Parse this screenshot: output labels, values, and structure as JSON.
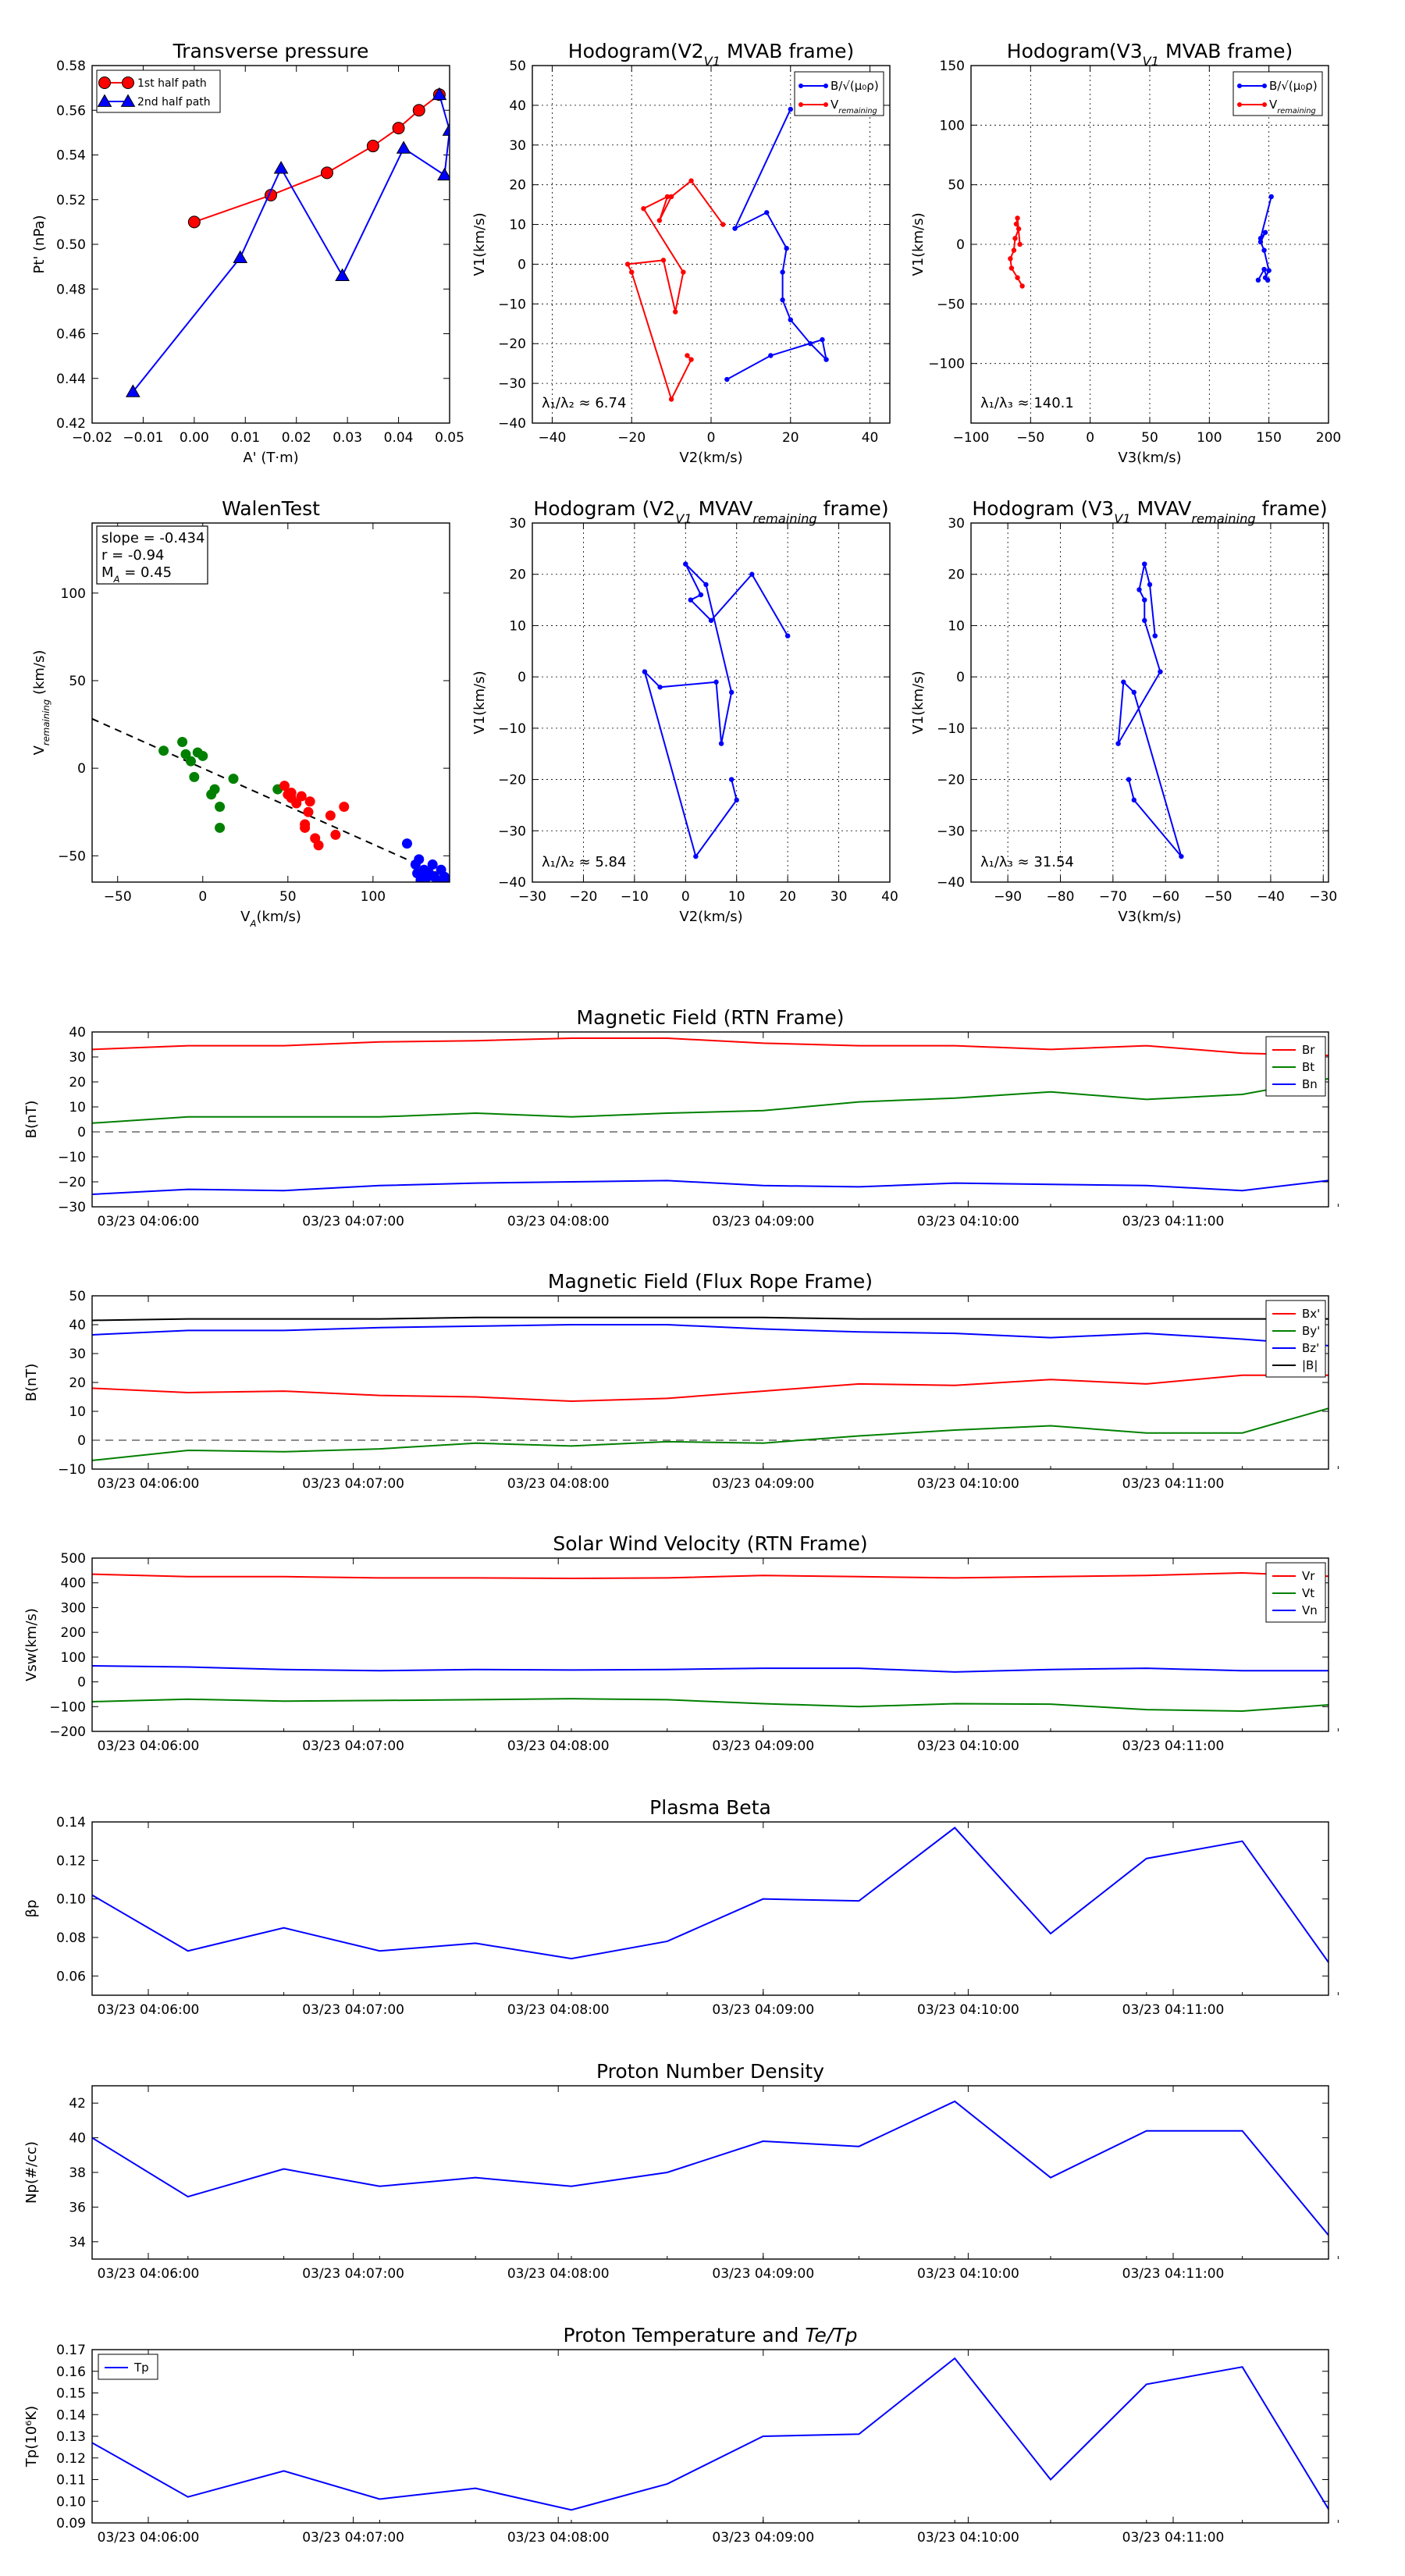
{
  "colors": {
    "red": "#ff0000",
    "green": "#008000",
    "blue": "#0000ff",
    "black": "#000000",
    "grid": "#000000"
  },
  "time_ticks": [
    "03/23 04:06:00",
    "03/23 04:07:00",
    "03/23 04:08:00",
    "03/23 04:09:00",
    "03/23 04:10:00",
    "03/23 04:11:00"
  ],
  "chart_data": [
    {
      "id": "transverse",
      "type": "line",
      "title": "Transverse pressure",
      "xlabel": "A' (T·m)",
      "ylabel": "Pt' (nPa)",
      "xlim": [
        -0.02,
        0.05
      ],
      "ylim": [
        0.42,
        0.58
      ],
      "xticks": [
        -0.02,
        -0.01,
        0.0,
        0.01,
        0.02,
        0.03,
        0.04,
        0.05
      ],
      "xtick_labels": [
        "−0.02",
        "−0.01",
        "0.00",
        "0.01",
        "0.02",
        "0.03",
        "0.04",
        "0.05"
      ],
      "yticks": [
        0.42,
        0.44,
        0.46,
        0.48,
        0.5,
        0.52,
        0.54,
        0.56,
        0.58
      ],
      "ytick_labels": [
        "0.42",
        "0.44",
        "0.46",
        "0.48",
        "0.50",
        "0.52",
        "0.54",
        "0.56",
        "0.58"
      ],
      "legend": [
        "1st half path",
        "2nd half path"
      ],
      "series": [
        {
          "name": "1st half path",
          "color": "red",
          "marker": "circle",
          "x": [
            0.0,
            0.015,
            0.026,
            0.035,
            0.04,
            0.044,
            0.048
          ],
          "y": [
            0.51,
            0.522,
            0.532,
            0.544,
            0.552,
            0.56,
            0.567
          ]
        },
        {
          "name": "2nd half path",
          "color": "blue",
          "marker": "triangle",
          "x": [
            0.048,
            0.05,
            0.049,
            0.041,
            0.029,
            0.017,
            0.009,
            -0.012
          ],
          "y": [
            0.567,
            0.551,
            0.531,
            0.543,
            0.486,
            0.534,
            0.494,
            0.434
          ]
        }
      ]
    },
    {
      "id": "hodo_v2v1_mvab",
      "type": "line",
      "title": "Hodogram(V2_V1 MVAB frame)",
      "xlabel": "V2(km/s)",
      "ylabel": "V1(km/s)",
      "xlim": [
        -45,
        45
      ],
      "ylim": [
        -40,
        50
      ],
      "xticks": [
        -40,
        -20,
        0,
        20,
        40
      ],
      "xtick_labels": [
        "−40",
        "−20",
        "0",
        "20",
        "40"
      ],
      "yticks": [
        -40,
        -30,
        -20,
        -10,
        0,
        10,
        20,
        30,
        40,
        50
      ],
      "ytick_labels": [
        "−40",
        "−30",
        "−20",
        "−10",
        "0",
        "10",
        "20",
        "30",
        "40",
        "50"
      ],
      "grid": true,
      "annotation": "λ₁/λ₂ ≈ 6.74",
      "legend": [
        "B/√(μ₀ρ)",
        "V_remaining"
      ],
      "series": [
        {
          "name": "B",
          "color": "blue",
          "marker": "dot",
          "x": [
            20,
            6,
            14,
            19,
            18,
            18,
            20,
            25,
            29,
            28,
            15,
            4
          ],
          "y": [
            39,
            9,
            13,
            4,
            -2,
            -9,
            -14,
            -20,
            -24,
            -19,
            -23,
            -29
          ]
        },
        {
          "name": "V",
          "color": "red",
          "marker": "dot",
          "x": [
            3,
            -5,
            -10,
            -13,
            -11,
            -17,
            -7,
            -9,
            -12,
            -21,
            -20,
            -10,
            -5,
            -6
          ],
          "y": [
            10,
            21,
            17,
            11,
            17,
            14,
            -2,
            -12,
            1,
            0,
            -2,
            -34,
            -24,
            -23
          ]
        }
      ]
    },
    {
      "id": "hodo_v3v1_mvab",
      "type": "line",
      "title": "Hodogram(V3_V1 MVAB frame)",
      "xlabel": "V3(km/s)",
      "ylabel": "V1(km/s)",
      "xlim": [
        -100,
        200
      ],
      "ylim": [
        -150,
        150
      ],
      "xticks": [
        -100,
        -50,
        0,
        50,
        100,
        150,
        200
      ],
      "xtick_labels": [
        "−100",
        "−50",
        "0",
        "50",
        "100",
        "150",
        "200"
      ],
      "yticks": [
        -100,
        -50,
        0,
        50,
        100,
        150
      ],
      "ytick_labels": [
        "−100",
        "−50",
        "0",
        "50",
        "100",
        "150"
      ],
      "grid": true,
      "annotation": "λ₁/λ₃ ≈ 140.1",
      "legend": [
        "B/√(μ₀ρ)",
        "V_remaining"
      ],
      "series": [
        {
          "name": "B",
          "color": "blue",
          "marker": "dot",
          "x": [
            152,
            143,
            147,
            143,
            146,
            150,
            147,
            149,
            146,
            141
          ],
          "y": [
            40,
            5,
            10,
            2,
            -5,
            -22,
            -28,
            -30,
            -21,
            -30
          ]
        },
        {
          "name": "V",
          "color": "red",
          "marker": "dot",
          "x": [
            -59,
            -61,
            -62,
            -60,
            -63,
            -64,
            -67,
            -66,
            -61,
            -57
          ],
          "y": [
            0,
            22,
            17,
            13,
            5,
            -5,
            -12,
            -20,
            -28,
            -35
          ]
        }
      ]
    },
    {
      "id": "walen",
      "type": "scatter",
      "title": "WalenTest",
      "xlabel": "V_A(km/s)",
      "ylabel": "V_remaining (km/s)",
      "xlim": [
        -65,
        145
      ],
      "ylim": [
        -65,
        140
      ],
      "xticks": [
        -50,
        0,
        50,
        100
      ],
      "xtick_labels": [
        "−50",
        "0",
        "50",
        "100"
      ],
      "yticks": [
        -50,
        0,
        50,
        100
      ],
      "ytick_labels": [
        "−50",
        "0",
        "50",
        "100"
      ],
      "textbox": [
        "slope = -0.434",
        "r = -0.94",
        "M_A = 0.45"
      ],
      "fit_line": {
        "slope": -0.434,
        "intercept": 0
      },
      "series": [
        {
          "name": "green",
          "color": "green",
          "x": [
            -23,
            -12,
            -10,
            -7,
            -3,
            0,
            -5,
            5,
            10,
            18,
            7,
            10,
            44
          ],
          "y": [
            10,
            15,
            8,
            4,
            9,
            7,
            -5,
            -15,
            -22,
            -6,
            -12,
            -34,
            -12
          ]
        },
        {
          "name": "red",
          "color": "red",
          "x": [
            48,
            50,
            52,
            52,
            55,
            58,
            60,
            62,
            66,
            68,
            75,
            78,
            83,
            60,
            63
          ],
          "y": [
            -10,
            -15,
            -17,
            -14,
            -20,
            -16,
            -32,
            -25,
            -40,
            -44,
            -27,
            -38,
            -22,
            -34,
            -19
          ]
        },
        {
          "name": "blue",
          "color": "blue",
          "x": [
            120,
            125,
            127,
            128,
            130,
            132,
            133,
            135,
            136,
            138,
            140,
            142,
            143,
            128,
            126
          ],
          "y": [
            -43,
            -55,
            -52,
            -60,
            -58,
            -62,
            -60,
            -55,
            -62,
            -64,
            -58,
            -62,
            -64,
            -64,
            -60
          ]
        }
      ]
    },
    {
      "id": "hodo_v2v1_mvav",
      "type": "line",
      "title": "Hodogram (V2_V1 MVAV_remaining frame)",
      "xlabel": "V2(km/s)",
      "ylabel": "V1(km/s)",
      "xlim": [
        -30,
        40
      ],
      "ylim": [
        -40,
        30
      ],
      "xticks": [
        -30,
        -20,
        -10,
        0,
        10,
        20,
        30,
        40
      ],
      "xtick_labels": [
        "−30",
        "−20",
        "−10",
        "0",
        "10",
        "20",
        "30",
        "40"
      ],
      "yticks": [
        -40,
        -30,
        -20,
        -10,
        0,
        10,
        20,
        30
      ],
      "ytick_labels": [
        "−40",
        "−30",
        "−20",
        "−10",
        "0",
        "10",
        "20",
        "30"
      ],
      "grid": true,
      "annotation": "λ₁/λ₂ ≈ 5.84",
      "series": [
        {
          "name": "V",
          "color": "blue",
          "marker": "dot",
          "x": [
            20,
            13,
            5,
            1,
            3,
            0,
            4,
            9,
            7,
            6,
            -5,
            -8,
            2,
            10,
            9
          ],
          "y": [
            8,
            20,
            11,
            15,
            16,
            22,
            18,
            -3,
            -13,
            -1,
            -2,
            1,
            -35,
            -24,
            -20
          ]
        }
      ]
    },
    {
      "id": "hodo_v3v1_mvav",
      "type": "line",
      "title": "Hodogram (V3_V1 MVAV_remaining frame)",
      "xlabel": "V3(km/s)",
      "ylabel": "V1(km/s)",
      "xlim": [
        -97,
        -29
      ],
      "ylim": [
        -40,
        30
      ],
      "xticks": [
        -90,
        -80,
        -70,
        -60,
        -50,
        -40,
        -30
      ],
      "xtick_labels": [
        "−90",
        "−80",
        "−70",
        "−60",
        "−50",
        "−40",
        "−30"
      ],
      "yticks": [
        -40,
        -30,
        -20,
        -10,
        0,
        10,
        20,
        30
      ],
      "ytick_labels": [
        "−40",
        "−30",
        "−20",
        "−10",
        "0",
        "10",
        "20",
        "30"
      ],
      "grid": true,
      "annotation": "λ₁/λ₃ ≈ 31.54",
      "series": [
        {
          "name": "V",
          "color": "blue",
          "marker": "dot",
          "x": [
            -62,
            -63,
            -64,
            -65,
            -64,
            -64,
            -61,
            -69,
            -68,
            -66,
            -57,
            -66,
            -67
          ],
          "y": [
            8,
            18,
            22,
            17,
            15,
            11,
            1,
            -13,
            -1,
            -3,
            -35,
            -24,
            -20
          ]
        }
      ]
    },
    {
      "id": "mag_rtn",
      "type": "line",
      "title": "Magnetic Field (RTN Frame)",
      "ylabel": "B(nT)",
      "ylim": [
        -30,
        40
      ],
      "yticks": [
        -30,
        -20,
        -10,
        0,
        10,
        20,
        30,
        40
      ],
      "ytick_labels": [
        "−30",
        "−20",
        "−10",
        "0",
        "10",
        "20",
        "30",
        "40"
      ],
      "zero_line": true,
      "legend": [
        "Br",
        "Bt",
        "Bn"
      ],
      "series": [
        {
          "name": "Br",
          "color": "red",
          "values": [
            33,
            34.5,
            34.5,
            36,
            36.5,
            37.5,
            37.5,
            35.5,
            34.5,
            34.5,
            33,
            34.5,
            31.5,
            30.5
          ]
        },
        {
          "name": "Bt",
          "color": "green",
          "values": [
            3.5,
            6,
            6,
            6,
            7.5,
            6,
            7.5,
            8.5,
            12,
            13.5,
            16,
            13,
            15,
            22
          ]
        },
        {
          "name": "Bn",
          "color": "blue",
          "values": [
            -25,
            -23,
            -23.5,
            -21.5,
            -20.5,
            -20,
            -19.5,
            -21.5,
            -22,
            -20.5,
            -21,
            -21.5,
            -23.5,
            -19
          ]
        }
      ]
    },
    {
      "id": "mag_fr",
      "type": "line",
      "title": "Magnetic Field (Flux Rope Frame)",
      "ylabel": "B(nT)",
      "ylim": [
        -10,
        50
      ],
      "yticks": [
        -10,
        0,
        10,
        20,
        30,
        40,
        50
      ],
      "ytick_labels": [
        "−10",
        "0",
        "10",
        "20",
        "30",
        "40",
        "50"
      ],
      "zero_line": true,
      "legend": [
        "Bx'",
        "By'",
        "Bz'",
        "|B|"
      ],
      "series": [
        {
          "name": "Bx'",
          "color": "red",
          "values": [
            18,
            16.5,
            17,
            15.5,
            15,
            13.5,
            14.5,
            17,
            19.5,
            19,
            21,
            19.5,
            22.5,
            22.5
          ]
        },
        {
          "name": "By'",
          "color": "green",
          "values": [
            -7,
            -3.5,
            -4,
            -3,
            -1,
            -2,
            -0.5,
            -1,
            1.5,
            3.5,
            5,
            2.5,
            2.5,
            12
          ]
        },
        {
          "name": "Bz'",
          "color": "blue",
          "values": [
            36.5,
            38,
            38,
            39,
            39.5,
            40,
            40,
            38.5,
            37.5,
            37,
            35.5,
            37,
            35,
            32.5
          ]
        },
        {
          "name": "|B|",
          "color": "black",
          "values": [
            41.5,
            42,
            42,
            42,
            42.5,
            42.5,
            42.5,
            42.5,
            42,
            42,
            42,
            42,
            42,
            42
          ]
        }
      ]
    },
    {
      "id": "vsw",
      "type": "line",
      "title": "Solar Wind Velocity (RTN Frame)",
      "ylabel": "Vsw(km/s)",
      "ylim": [
        -200,
        500
      ],
      "yticks": [
        -200,
        -100,
        0,
        100,
        200,
        300,
        400,
        500
      ],
      "ytick_labels": [
        "−200",
        "−100",
        "0",
        "100",
        "200",
        "300",
        "400",
        "500"
      ],
      "legend": [
        "Vr",
        "Vt",
        "Vn"
      ],
      "series": [
        {
          "name": "Vr",
          "color": "red",
          "values": [
            435,
            425,
            425,
            420,
            420,
            418,
            420,
            430,
            425,
            420,
            425,
            430,
            440,
            425
          ]
        },
        {
          "name": "Vt",
          "color": "green",
          "values": [
            -80,
            -70,
            -78,
            -75,
            -72,
            -68,
            -72,
            -88,
            -100,
            -88,
            -90,
            -112,
            -118,
            -90
          ]
        },
        {
          "name": "Vn",
          "color": "blue",
          "values": [
            65,
            60,
            50,
            45,
            50,
            48,
            50,
            55,
            55,
            40,
            50,
            55,
            45,
            45
          ]
        }
      ]
    },
    {
      "id": "beta",
      "type": "line",
      "title": "Plasma Beta",
      "ylabel": "βp",
      "ylim": [
        0.05,
        0.14
      ],
      "yticks": [
        0.06,
        0.08,
        0.1,
        0.12,
        0.14
      ],
      "ytick_labels": [
        "0.06",
        "0.08",
        "0.10",
        "0.12",
        "0.14"
      ],
      "series": [
        {
          "name": "βp",
          "color": "blue",
          "values": [
            0.102,
            0.073,
            0.085,
            0.073,
            0.077,
            0.069,
            0.078,
            0.1,
            0.099,
            0.137,
            0.082,
            0.121,
            0.13,
            0.06
          ]
        }
      ]
    },
    {
      "id": "np",
      "type": "line",
      "title": "Proton Number Density",
      "ylabel": "Np(#/cc)",
      "ylim": [
        33,
        43
      ],
      "yticks": [
        34,
        36,
        38,
        40,
        42
      ],
      "ytick_labels": [
        "34",
        "36",
        "38",
        "40",
        "42"
      ],
      "series": [
        {
          "name": "Np",
          "color": "blue",
          "values": [
            40.0,
            36.6,
            38.2,
            37.2,
            37.7,
            37.2,
            38.0,
            39.8,
            39.5,
            42.1,
            37.7,
            40.4,
            40.4,
            33.7
          ]
        }
      ]
    },
    {
      "id": "tp",
      "type": "line",
      "title": "Proton Temperature and Te/Tp",
      "ylabel": "Tp(10⁶K)",
      "ylim": [
        0.09,
        0.17
      ],
      "yticks": [
        0.09,
        0.1,
        0.11,
        0.12,
        0.13,
        0.14,
        0.15,
        0.16,
        0.17
      ],
      "ytick_labels": [
        "0.09",
        "0.10",
        "0.11",
        "0.12",
        "0.13",
        "0.14",
        "0.15",
        "0.16",
        "0.17"
      ],
      "legend": [
        "Tp"
      ],
      "series": [
        {
          "name": "Tp",
          "color": "blue",
          "values": [
            0.127,
            0.102,
            0.114,
            0.101,
            0.106,
            0.096,
            0.108,
            0.13,
            0.131,
            0.166,
            0.11,
            0.154,
            0.162,
            0.089
          ]
        }
      ]
    }
  ]
}
